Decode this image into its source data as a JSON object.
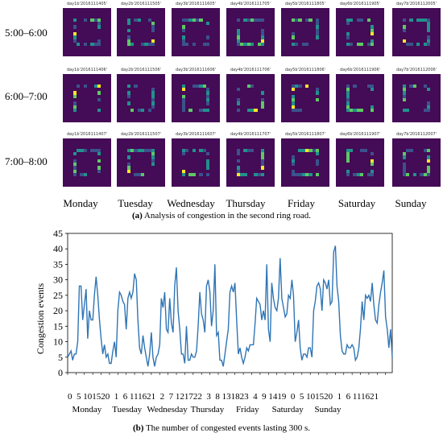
{
  "panel_a": {
    "row_labels": [
      "5:00–6:00",
      "6:00–7:00",
      "7:00–8:00"
    ],
    "day_labels": [
      "Monday",
      "Tuesday",
      "Wednesday",
      "Thursday",
      "Friday",
      "Saturday",
      "Sunday"
    ],
    "cell_titles": [
      [
        "day1b'2016111405'",
        "day2b'2016111505'",
        "day3b'2016111605'",
        "day4b'2016111705'",
        "day5b'2016111805'",
        "day6b'2016111905'",
        "day7b'2016112005'"
      ],
      [
        "day1b'2016111406'",
        "day2b'2016111506'",
        "day3b'2016111606'",
        "day4b'2016111706'",
        "day5b'2016111806'",
        "day6b'2016111906'",
        "day7b'2016112006'"
      ],
      [
        "day1b'2016111407'",
        "day2b'2016111507'",
        "day3b'2016111607'",
        "day4b'2016111707'",
        "day5b'2016111807'",
        "day6b'2016111907'",
        "day7b'2016112007'"
      ]
    ],
    "caption_letter": "(a)",
    "caption_text": " Analysis of congestion in the second ring road.",
    "colors": {
      "background": "#440b56",
      "low": "#3b528b",
      "mid": "#21918c",
      "high": "#5ec962",
      "peak": "#fde725"
    }
  },
  "chart_data": {
    "type": "line",
    "title": "",
    "xlabel": "",
    "ylabel": "Congestion events",
    "ylim": [
      0,
      45
    ],
    "yticks": [
      0,
      5,
      10,
      15,
      20,
      25,
      30,
      35,
      40,
      45
    ],
    "xtick_text": "0  5 101520  1  6 111621  2  7 121722  3  8 131823  4  9 1419  0  5 101520  1  6 111621",
    "day_labels": [
      "Monday",
      "Tuesday",
      "Wednesday",
      "Thursday",
      "Friday",
      "Saturday",
      "Sunday"
    ],
    "grid": false,
    "line_color": "#2f75b5",
    "values": [
      5,
      6,
      7,
      4,
      6,
      6,
      10,
      28,
      28,
      17,
      22,
      27,
      11,
      20,
      17,
      17,
      25,
      31,
      25,
      17,
      11,
      6,
      9,
      5,
      6,
      3,
      3,
      7,
      10,
      5,
      20,
      26,
      25,
      23,
      22,
      14,
      24,
      26,
      24,
      26,
      32,
      30,
      17,
      8,
      6,
      12,
      8,
      5,
      2,
      6,
      13,
      5,
      2,
      5,
      6,
      9,
      24,
      21,
      26,
      14,
      13,
      24,
      16,
      13,
      28,
      34,
      20,
      14,
      6,
      6,
      3,
      15,
      4,
      4,
      6,
      5,
      5,
      7,
      15,
      26,
      19,
      17,
      13,
      28,
      30,
      26,
      15,
      20,
      35,
      12,
      13,
      4,
      4,
      2,
      6,
      10,
      14,
      26,
      28,
      26,
      29,
      17,
      6,
      8,
      5,
      3,
      5,
      8,
      7,
      9,
      9,
      9,
      16,
      24,
      23,
      22,
      17,
      20,
      17,
      35,
      14,
      10,
      29,
      24,
      21,
      20,
      24,
      37,
      24,
      21,
      18,
      19,
      25,
      24,
      30,
      25,
      10,
      13,
      17,
      8,
      4,
      6,
      6,
      5,
      8,
      8,
      5,
      20,
      23,
      28,
      29,
      27,
      20,
      30,
      29,
      27,
      30,
      22,
      23,
      39,
      41,
      28,
      23,
      12,
      7,
      6,
      6,
      9,
      8,
      8,
      9,
      8,
      4,
      5,
      8,
      14,
      23,
      17,
      25,
      24,
      25,
      23,
      29,
      22,
      17,
      16,
      22,
      26,
      29,
      33,
      18,
      14,
      8,
      14,
      5
    ],
    "day_starts": [
      0,
      24,
      48,
      72,
      96,
      120,
      144
    ],
    "caption_letter": "(b)",
    "caption_text": " The number of congested events lasting 300 s."
  }
}
